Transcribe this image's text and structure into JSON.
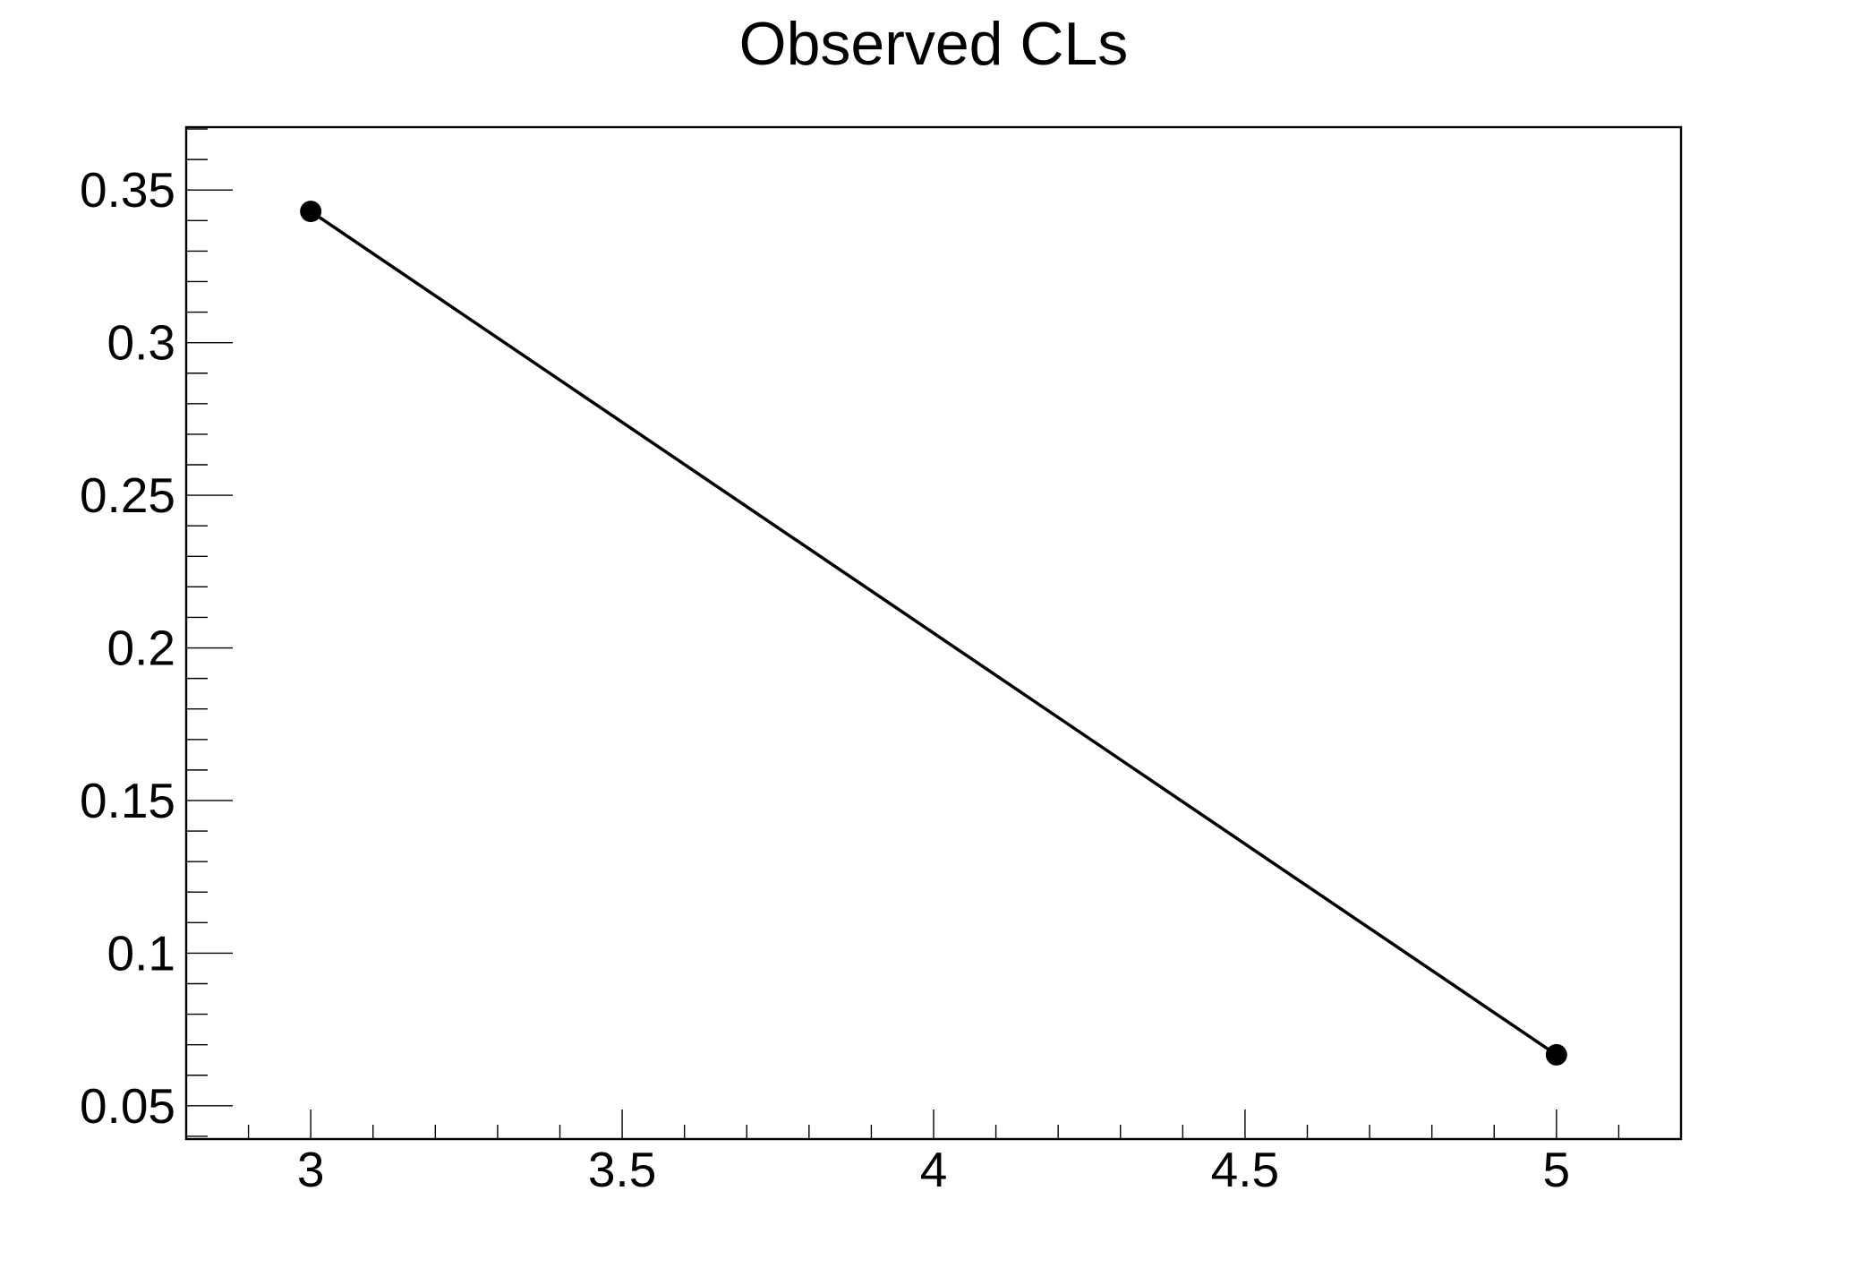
{
  "chart_data": {
    "type": "line",
    "title": "Observed CLs",
    "series": [
      {
        "name": "Observed CLs",
        "x": [
          3,
          5
        ],
        "y": [
          0.343,
          0.0667
        ]
      }
    ],
    "xlim": [
      2.8,
      5.2
    ],
    "ylim": [
      0.0391,
      0.3706
    ],
    "x_major_ticks": [
      3,
      3.5,
      4,
      4.5,
      5
    ],
    "x_tick_labels": [
      "3",
      "3.5",
      "4",
      "4.5",
      "5"
    ],
    "x_minor_step": 0.1,
    "y_major_ticks": [
      0.05,
      0.1,
      0.15,
      0.2,
      0.25,
      0.3,
      0.35
    ],
    "y_tick_labels": [
      "0.05",
      "0.1",
      "0.15",
      "0.2",
      "0.25",
      "0.3",
      "0.35"
    ],
    "y_minor_step": 0.01,
    "grid": false,
    "legend": false,
    "marker": "filled-circle",
    "line_color": "#000000",
    "marker_color": "#000000",
    "axis_color": "#000000",
    "background": "#ffffff",
    "xlabel": "",
    "ylabel": ""
  }
}
